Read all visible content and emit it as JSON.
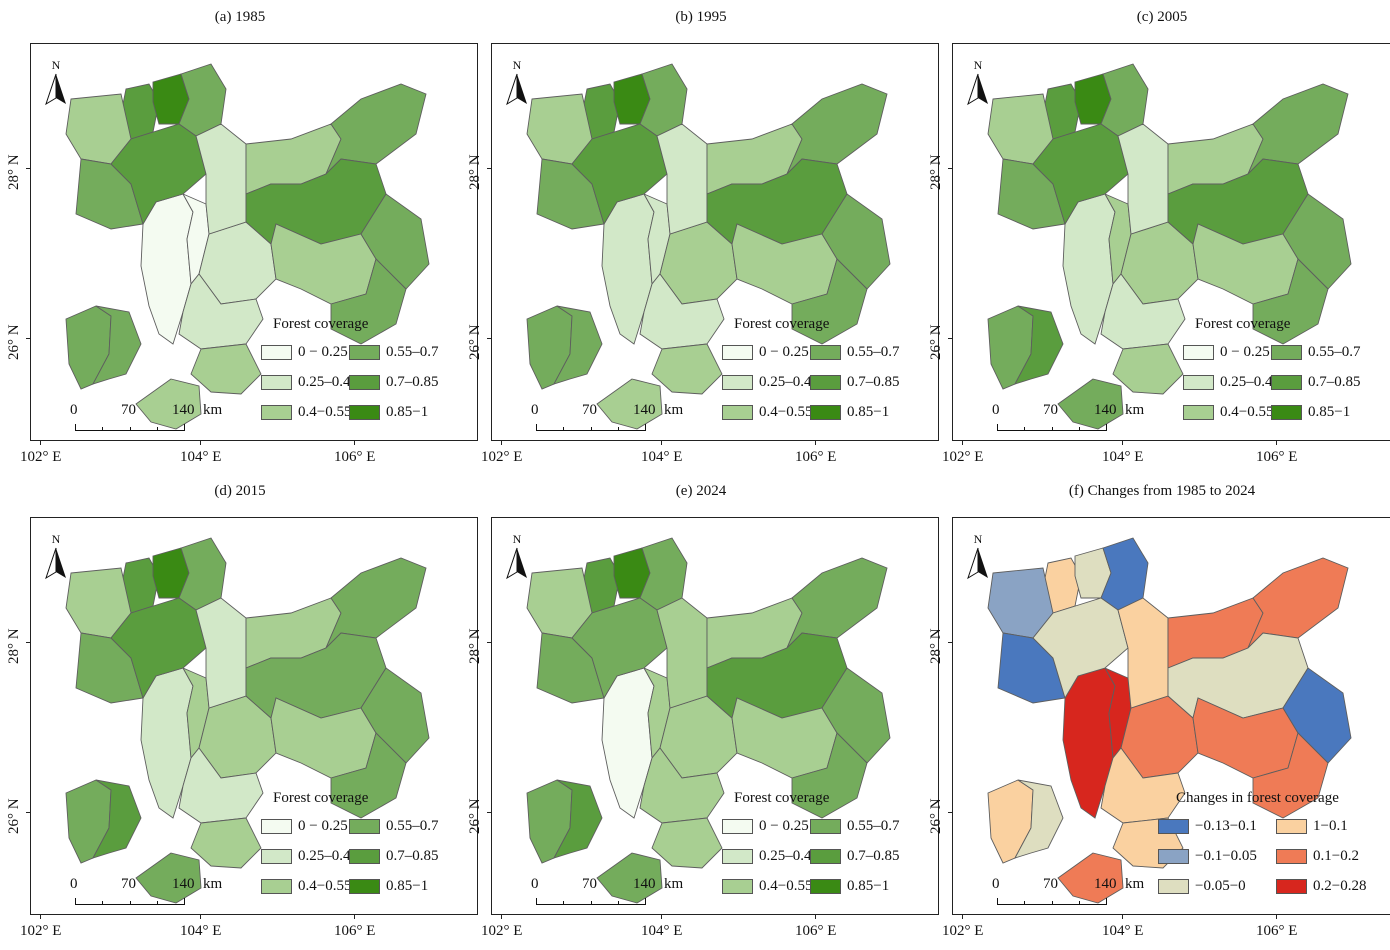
{
  "panels": [
    {
      "title": "(a) 1985",
      "type": "coverage",
      "fills": [
        "#f4fbf1",
        "#f4fbf1",
        "#d2e8c8",
        "#d2e8c8",
        "#a8cf92",
        "#a8cf92",
        "#74ac5c",
        "#74ac5c",
        "#5a9d3e",
        "#3a8a14",
        "#74ac5c",
        "#a8cf92",
        "#74ac5c",
        "#5a9d3e",
        "#d2e8c8",
        "#a8cf92",
        "#74ac5c",
        "#5a9d3e"
      ]
    },
    {
      "title": "(b) 1995",
      "type": "coverage",
      "fills": [
        "#d2e8c8",
        "#d2e8c8",
        "#a8cf92",
        "#d2e8c8",
        "#a8cf92",
        "#a8cf92",
        "#74ac5c",
        "#74ac5c",
        "#5a9d3e",
        "#3a8a14",
        "#74ac5c",
        "#a8cf92",
        "#74ac5c",
        "#5a9d3e",
        "#d2e8c8",
        "#a8cf92",
        "#74ac5c",
        "#5a9d3e"
      ]
    },
    {
      "title": "(c) 2005",
      "type": "coverage",
      "fills": [
        "#d2e8c8",
        "#a8cf92",
        "#a8cf92",
        "#d2e8c8",
        "#a8cf92",
        "#74ac5c",
        "#74ac5c",
        "#5a9d3e",
        "#5a9d3e",
        "#3a8a14",
        "#74ac5c",
        "#a8cf92",
        "#74ac5c",
        "#5a9d3e",
        "#d2e8c8",
        "#a8cf92",
        "#74ac5c",
        "#5a9d3e"
      ]
    },
    {
      "title": "(d) 2015",
      "type": "coverage",
      "fills": [
        "#d2e8c8",
        "#a8cf92",
        "#a8cf92",
        "#d2e8c8",
        "#a8cf92",
        "#74ac5c",
        "#74ac5c",
        "#5a9d3e",
        "#5a9d3e",
        "#3a8a14",
        "#74ac5c",
        "#a8cf92",
        "#74ac5c",
        "#5a9d3e",
        "#d2e8c8",
        "#a8cf92",
        "#74ac5c",
        "#74ac5c"
      ]
    },
    {
      "title": "(e) 2024",
      "type": "coverage",
      "fills": [
        "#f4fbf1",
        "#a8cf92",
        "#a8cf92",
        "#a8cf92",
        "#a8cf92",
        "#74ac5c",
        "#74ac5c",
        "#5a9d3e",
        "#5a9d3e",
        "#3a8a14",
        "#74ac5c",
        "#a8cf92",
        "#74ac5c",
        "#74ac5c",
        "#a8cf92",
        "#a8cf92",
        "#74ac5c",
        "#5a9d3e"
      ]
    },
    {
      "title": "(f) Changes from 1985 to 2024",
      "type": "change",
      "fills": [
        "#d7261e",
        "#d7261e",
        "#ef7b56",
        "#fad1a0",
        "#fad1a0",
        "#ef7b56",
        "#fad1a0",
        "#dedec0",
        "#fad1a0",
        "#dedec0",
        "#4a78be",
        "#8aa3c4",
        "#4a78be",
        "#dedec0",
        "#fad1a0",
        "#ef7b56",
        "#ef7b56",
        "#dedec0"
      ]
    }
  ],
  "coverage_legend": {
    "title": "Forest coverage",
    "items": [
      {
        "label": "0 − 0.25",
        "color": "#f4fbf1"
      },
      {
        "label": "0.55–0.7",
        "color": "#74ac5c"
      },
      {
        "label": "0.25–0.4",
        "color": "#d2e8c8"
      },
      {
        "label": "0.7–0.85",
        "color": "#5a9d3e"
      },
      {
        "label": "0.4−0.55",
        "color": "#a8cf92"
      },
      {
        "label": "0.85−1",
        "color": "#3a8a14"
      }
    ]
  },
  "change_legend": {
    "title": "Changes in forest coverage",
    "items": [
      {
        "label": "−0.13−0.1",
        "color": "#4a78be"
      },
      {
        "label": "1−0.1",
        "color": "#fad1a0"
      },
      {
        "label": "−0.1−0.05",
        "color": "#8aa3c4"
      },
      {
        "label": "0.1−0.2",
        "color": "#ef7b56"
      },
      {
        "label": "−0.05−0",
        "color": "#dedec0"
      },
      {
        "label": "0.2−0.28",
        "color": "#d7261e"
      }
    ]
  },
  "scalebar": {
    "labels": [
      "0",
      "70",
      "140"
    ],
    "unit": "km"
  },
  "north_label": "N",
  "axes": {
    "lon_labels": [
      "102° E",
      "104° E",
      "106° E"
    ],
    "lat_labels": [
      "28° N",
      "26° N"
    ]
  },
  "map_style": {
    "outline": "#5e5e5e"
  }
}
